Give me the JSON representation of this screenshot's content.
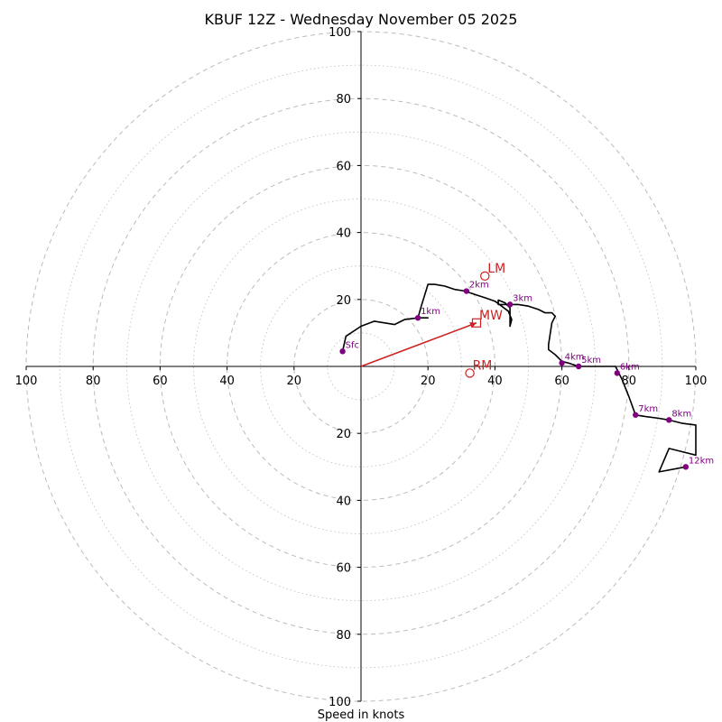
{
  "chart_data": {
    "type": "line",
    "plot_kind": "hodograph",
    "title": "KBUF 12Z - Wednesday November 05 2025",
    "xlabel": "Speed in knots",
    "range": 100,
    "ring_step_dashed": 20,
    "ring_step_dotted": 10,
    "tick_values": [
      20,
      40,
      60,
      80,
      100
    ],
    "tick_labels": [
      "20",
      "40",
      "60",
      "80",
      "100"
    ],
    "wind_trace": [
      [
        -5.5,
        4.5
      ],
      [
        -4.5,
        9.0
      ],
      [
        0,
        12.0
      ],
      [
        4,
        13.5
      ],
      [
        10,
        12.5
      ],
      [
        13,
        14.0
      ],
      [
        17,
        14.5
      ],
      [
        20,
        14.5
      ],
      [
        17,
        14.5
      ],
      [
        18,
        18.0
      ],
      [
        20,
        24.5
      ],
      [
        22,
        24.5
      ],
      [
        25,
        24.0
      ],
      [
        28,
        23.0
      ],
      [
        31,
        22.5
      ],
      [
        34,
        21.5
      ],
      [
        37,
        20.5
      ],
      [
        40,
        19.5
      ],
      [
        42,
        18.0
      ],
      [
        44,
        16.5
      ],
      [
        45,
        14.0
      ],
      [
        44.5,
        12.0
      ],
      [
        44.5,
        17.5
      ],
      [
        43,
        19.0
      ],
      [
        41,
        19.8
      ],
      [
        41,
        18.5
      ],
      [
        44.5,
        18.5
      ],
      [
        47,
        18.5
      ],
      [
        50,
        18.0
      ],
      [
        53,
        17.0
      ],
      [
        55,
        16.0
      ],
      [
        57,
        16.0
      ],
      [
        58,
        15.0
      ],
      [
        57,
        13.0
      ],
      [
        56,
        6.5
      ],
      [
        56,
        5.0
      ],
      [
        58,
        3.5
      ],
      [
        60,
        1.5
      ],
      [
        62,
        1.0
      ],
      [
        65,
        0
      ],
      [
        70,
        0
      ],
      [
        76,
        0
      ],
      [
        77,
        -2.0
      ],
      [
        78,
        -4.0
      ],
      [
        80,
        -9.0
      ],
      [
        82,
        -14.5
      ],
      [
        85,
        -15.0
      ],
      [
        89,
        -15.5
      ],
      [
        92,
        -16.0
      ],
      [
        96,
        -17.0
      ],
      [
        100,
        -17.5
      ],
      [
        100,
        -26.5
      ],
      [
        92,
        -24.5
      ],
      [
        89,
        -31.5
      ],
      [
        97,
        -30.0
      ]
    ],
    "height_markers": [
      {
        "label": "Sfc",
        "u": -5.5,
        "v": 4.5
      },
      {
        "label": "1km",
        "u": 17,
        "v": 14.5
      },
      {
        "label": "2km",
        "u": 31.5,
        "v": 22.5
      },
      {
        "label": "3km",
        "u": 44.5,
        "v": 18.5
      },
      {
        "label": "4km",
        "u": 60,
        "v": 1.0
      },
      {
        "label": "5km",
        "u": 65,
        "v": 0
      },
      {
        "label": "6km",
        "u": 76.5,
        "v": -2.0
      },
      {
        "label": "7km",
        "u": 82,
        "v": -14.5
      },
      {
        "label": "8km",
        "u": 92,
        "v": -16.0
      },
      {
        "label": "12km",
        "u": 97,
        "v": -30.0
      }
    ],
    "storm_motions": [
      {
        "label": "LM",
        "u": 37,
        "v": 27,
        "marker": "circle"
      },
      {
        "label": "MW",
        "u": 34.5,
        "v": 13,
        "marker": "square"
      },
      {
        "label": "RM",
        "u": 32.5,
        "v": -2,
        "marker": "circle"
      }
    ],
    "shear_vector": {
      "from": [
        0,
        0
      ],
      "to": [
        34.5,
        13
      ]
    }
  },
  "colors": {
    "trace": "#000000",
    "markers": "#800080",
    "storm": "#cc2222",
    "rings": "#bbbbbb"
  }
}
